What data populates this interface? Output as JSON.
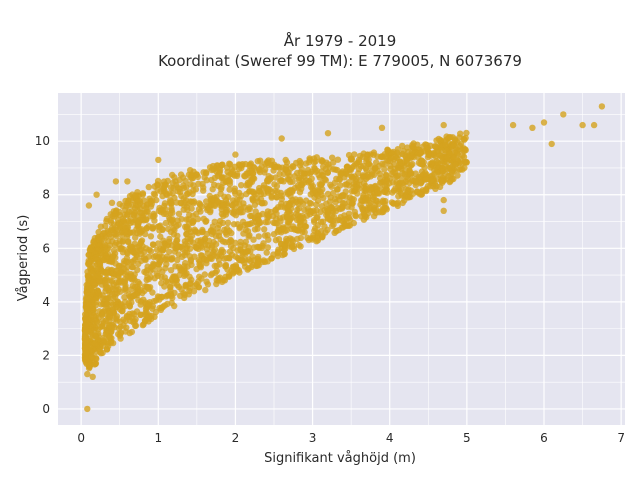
{
  "chart_data": {
    "type": "scatter",
    "title_lines": [
      "År 1979 - 2019",
      "Koordinat (Sweref 99 TM): E 779005, N 6073679"
    ],
    "xlabel": "Signifikant våghöjd (m)",
    "ylabel": "Vågperiod (s)",
    "xlim": [
      -0.3,
      7.05
    ],
    "ylim": [
      -0.6,
      11.8
    ],
    "xticks": [
      0,
      1,
      2,
      3,
      4,
      5,
      6,
      7
    ],
    "yticks": [
      0,
      2,
      4,
      6,
      8,
      10
    ],
    "grid": true,
    "legend": "none",
    "colors": {
      "background": "#e5e5f0",
      "grid": "#ffffff",
      "points": "#d4a21e"
    },
    "density_envelope": {
      "description_points": "dense cloud bounded by lower and upper period curves",
      "x": [
        0.05,
        0.1,
        0.2,
        0.3,
        0.5,
        0.75,
        1.0,
        1.25,
        1.5,
        1.75,
        2.0,
        2.25,
        2.5,
        2.75,
        3.0,
        3.25,
        3.5,
        3.75,
        4.0,
        4.25,
        4.5,
        4.75,
        5.0
      ],
      "lower": [
        1.8,
        1.5,
        1.7,
        2.1,
        2.6,
        3.0,
        3.5,
        3.9,
        4.3,
        4.6,
        5.0,
        5.3,
        5.6,
        5.9,
        6.2,
        6.5,
        6.8,
        7.1,
        7.4,
        7.8,
        8.1,
        8.4,
        9.0
      ],
      "upper": [
        3.5,
        6.0,
        6.6,
        7.0,
        7.7,
        8.2,
        8.6,
        8.8,
        9.0,
        9.1,
        9.2,
        9.3,
        9.3,
        9.3,
        9.4,
        9.4,
        9.5,
        9.6,
        9.7,
        9.9,
        10.0,
        10.2,
        10.4
      ]
    },
    "outlier_points": [
      {
        "x": 0.08,
        "y": 0.0
      },
      {
        "x": 0.08,
        "y": 1.3
      },
      {
        "x": 0.15,
        "y": 1.2
      },
      {
        "x": 0.1,
        "y": 7.6
      },
      {
        "x": 0.2,
        "y": 8.0
      },
      {
        "x": 0.4,
        "y": 7.7
      },
      {
        "x": 0.45,
        "y": 8.5
      },
      {
        "x": 0.6,
        "y": 8.5
      },
      {
        "x": 1.0,
        "y": 9.3
      },
      {
        "x": 2.0,
        "y": 9.5
      },
      {
        "x": 2.6,
        "y": 10.1
      },
      {
        "x": 3.2,
        "y": 10.3
      },
      {
        "x": 3.9,
        "y": 10.5
      },
      {
        "x": 4.7,
        "y": 10.6
      },
      {
        "x": 4.7,
        "y": 7.4
      },
      {
        "x": 4.7,
        "y": 7.8
      },
      {
        "x": 3.8,
        "y": 7.5
      },
      {
        "x": 5.6,
        "y": 10.6
      },
      {
        "x": 5.85,
        "y": 10.5
      },
      {
        "x": 6.0,
        "y": 10.7
      },
      {
        "x": 6.1,
        "y": 9.9
      },
      {
        "x": 6.25,
        "y": 11.0
      },
      {
        "x": 6.5,
        "y": 10.6
      },
      {
        "x": 6.65,
        "y": 10.6
      },
      {
        "x": 6.75,
        "y": 11.3
      }
    ]
  }
}
